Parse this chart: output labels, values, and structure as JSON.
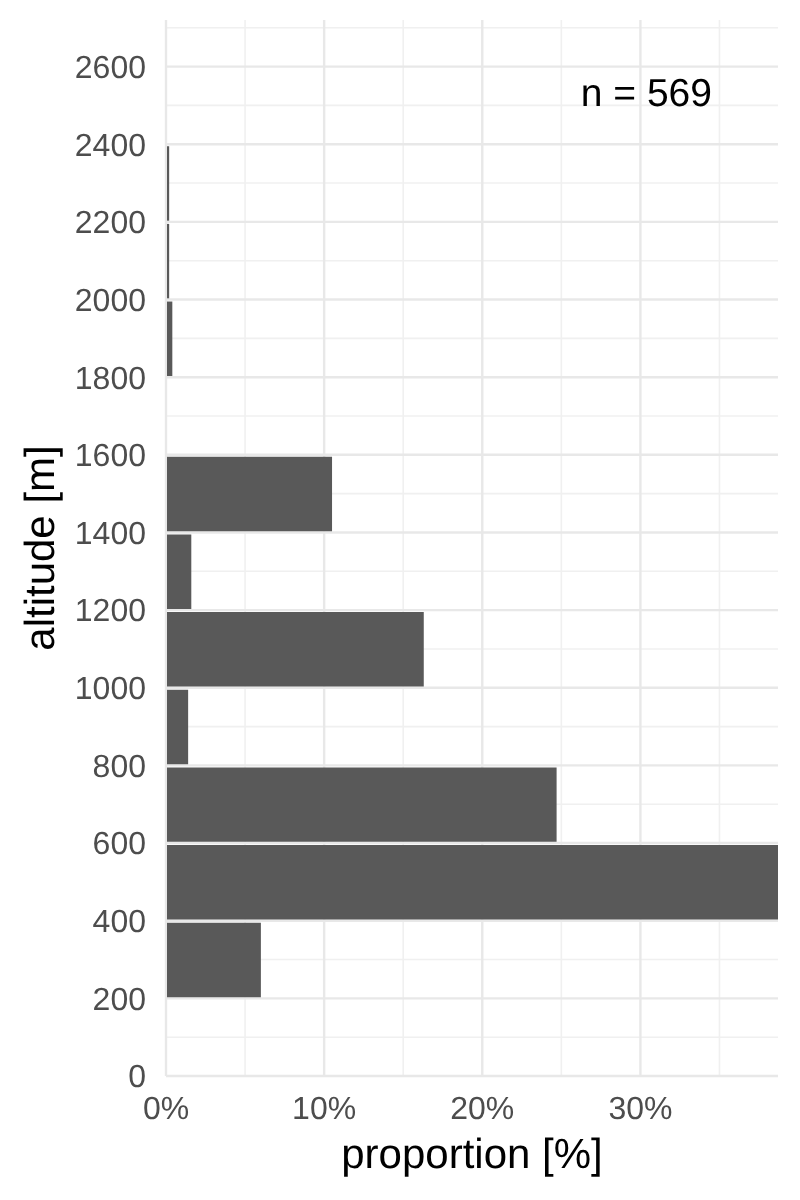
{
  "chart_data": {
    "type": "histogram",
    "orientation": "horizontal",
    "xlabel": "proportion [%]",
    "ylabel": "altitude [m]",
    "annotations": [
      "n = 569"
    ],
    "bins": [
      200,
      400,
      600,
      800,
      1000,
      1200,
      1400,
      1600,
      1800,
      2000,
      2200,
      2400
    ],
    "values": [
      6.0,
      38.7,
      24.7,
      1.4,
      16.3,
      1.6,
      10.5,
      0,
      0.4,
      0.2,
      0.2
    ],
    "color": "#595959",
    "xlim": [
      0,
      38.7
    ],
    "xticks": [
      {
        "value": 0,
        "label": "0%"
      },
      {
        "value": 10,
        "label": "10%"
      },
      {
        "value": 20,
        "label": "20%"
      },
      {
        "value": 30,
        "label": "30%"
      }
    ],
    "ylim": [
      0,
      2720
    ],
    "yticks": [
      0,
      200,
      400,
      600,
      800,
      1000,
      1200,
      1400,
      1600,
      1800,
      2000,
      2200,
      2400,
      2600
    ],
    "grid": true
  }
}
